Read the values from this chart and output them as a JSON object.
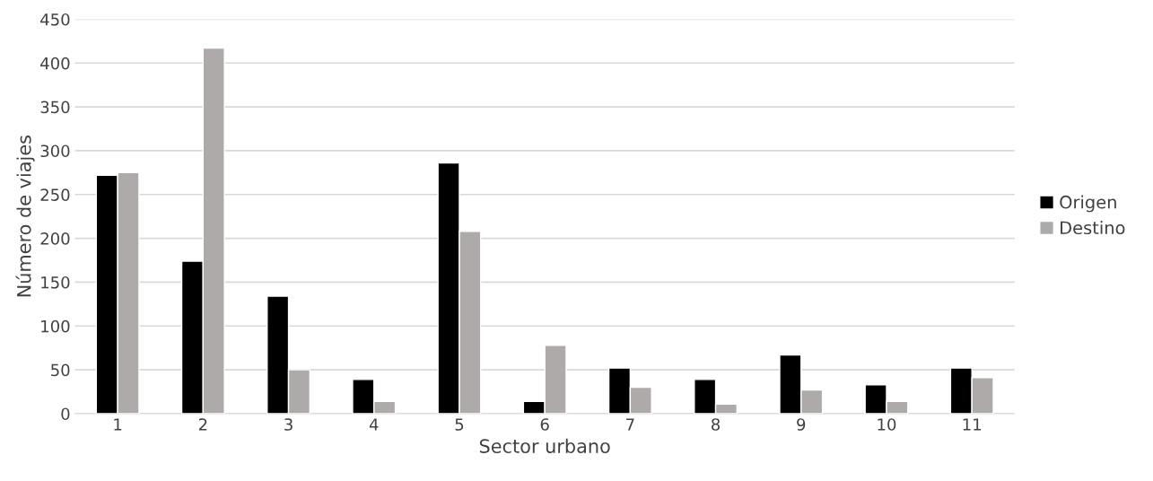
{
  "chart_data": {
    "type": "bar",
    "xlabel": "Sector urbano",
    "ylabel": "Número de viajes",
    "categories": [
      "1",
      "2",
      "3",
      "4",
      "5",
      "6",
      "7",
      "8",
      "9",
      "10",
      "11"
    ],
    "series": [
      {
        "name": "Origen",
        "color": "#000000",
        "values": [
          272,
          174,
          134,
          39,
          286,
          14,
          52,
          39,
          67,
          33,
          52
        ]
      },
      {
        "name": "Destino",
        "color": "#aeaaaa",
        "values": [
          275,
          417,
          50,
          14,
          208,
          78,
          30,
          11,
          27,
          14,
          41
        ]
      }
    ],
    "ylim": [
      0,
      450
    ],
    "yticks": [
      0,
      50,
      100,
      150,
      200,
      250,
      300,
      350,
      400,
      450
    ],
    "grid": "y",
    "legend": "right"
  }
}
